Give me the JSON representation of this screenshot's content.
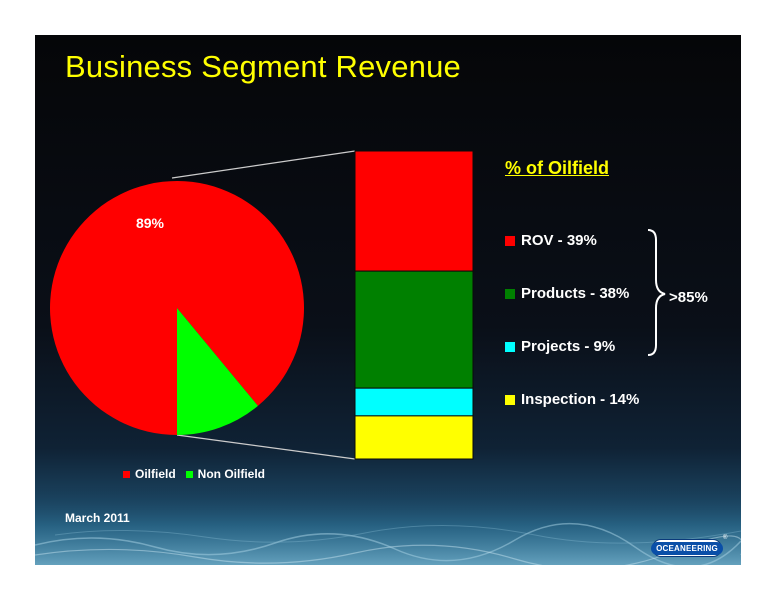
{
  "slide": {
    "title": "Business Segment Revenue",
    "date": "March 2011",
    "logo_text": "OCEANEERING",
    "logo_mark": "®"
  },
  "colors": {
    "title": "#ffff00",
    "oilfield": "#ff0000",
    "non_oilfield": "#00ff00",
    "rov": "#ff0000",
    "products": "#008000",
    "projects": "#00ffff",
    "inspection": "#ffff00"
  },
  "chart_data": [
    {
      "type": "pie",
      "slices": [
        {
          "name": "Oilfield",
          "value": 89,
          "label": "89%",
          "color": "#ff0000"
        },
        {
          "name": "Non Oilfield",
          "value": 11,
          "label": "",
          "color": "#00ff00"
        }
      ],
      "legend_position": "bottom",
      "legend": [
        "Oilfield",
        "Non Oilfield"
      ]
    },
    {
      "type": "bar",
      "stacked": true,
      "title": "% of Oilfield",
      "series": [
        {
          "name": "ROV - 39%",
          "value": 39,
          "color": "#ff0000"
        },
        {
          "name": "Products - 38%",
          "value": 38,
          "color": "#008000"
        },
        {
          "name": "Projects - 9%",
          "value": 9,
          "color": "#00ffff"
        },
        {
          "name": "Inspection - 14%",
          "value": 14,
          "color": "#ffff00"
        }
      ],
      "legend_position": "right",
      "annotation": ">85%"
    }
  ]
}
